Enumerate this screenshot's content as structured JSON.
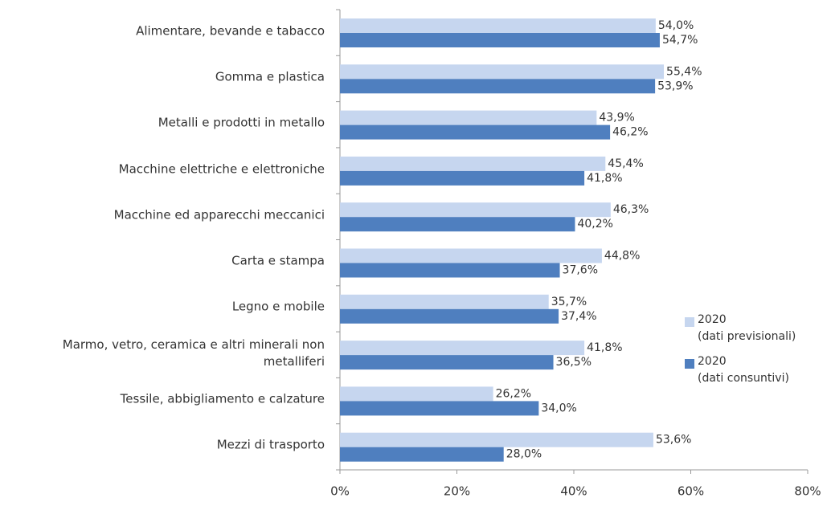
{
  "chart_data": {
    "type": "hbar",
    "categories": [
      "Alimentare, bevande e tabacco",
      "Gomma e plastica",
      "Metalli e prodotti in metallo",
      "Macchine elettriche e elettroniche",
      "Macchine ed apparecchi meccanici",
      "Carta e stampa",
      "Legno e mobile",
      "Marmo, vetro, ceramica e altri minerali non\nmetalliferi",
      "Tessile, abbigliamento e calzature",
      "Mezzi di trasporto"
    ],
    "series": [
      {
        "name": "2020\n(dati previsionali)",
        "color": "#c6d6ef",
        "values": [
          54.0,
          55.4,
          43.9,
          45.4,
          46.3,
          44.8,
          35.7,
          41.8,
          26.2,
          53.6
        ],
        "value_labels": [
          "54,0%",
          "55,4%",
          "43,9%",
          "45,4%",
          "46,3%",
          "44,8%",
          "35,7%",
          "41,8%",
          "26,2%",
          "53,6%"
        ]
      },
      {
        "name": "2020\n(dati consuntivi)",
        "color": "#4f7fbf",
        "values": [
          54.7,
          53.9,
          46.2,
          41.8,
          40.2,
          37.6,
          37.4,
          36.5,
          34.0,
          28.0
        ],
        "value_labels": [
          "54,7%",
          "53,9%",
          "46,2%",
          "41,8%",
          "40,2%",
          "37,6%",
          "37,4%",
          "36,5%",
          "34,0%",
          "28,0%"
        ]
      }
    ],
    "xlim": [
      0,
      80
    ],
    "xticks": [
      {
        "value": 0,
        "label": "0%"
      },
      {
        "value": 20,
        "label": "20%"
      },
      {
        "value": 40,
        "label": "40%"
      },
      {
        "value": 60,
        "label": "60%"
      },
      {
        "value": 80,
        "label": "80%"
      }
    ],
    "legend": "right"
  }
}
